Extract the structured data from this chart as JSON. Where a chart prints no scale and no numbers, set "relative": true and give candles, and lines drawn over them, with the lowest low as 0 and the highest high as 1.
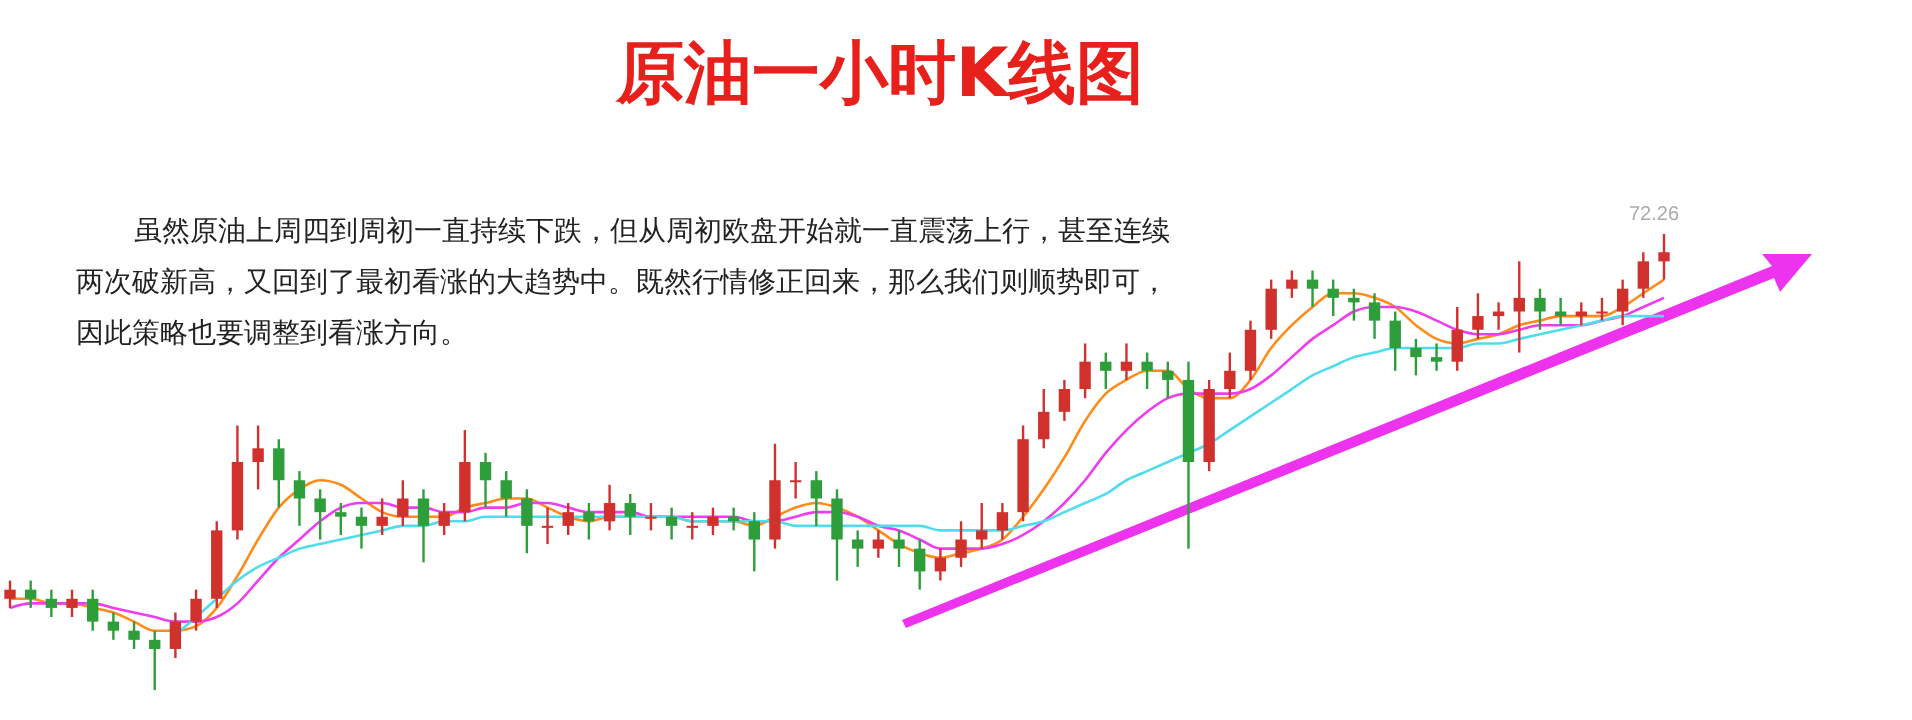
{
  "chart_data": {
    "type": "candlestick",
    "title": "原油一小时K线图",
    "relative": true,
    "annotations": [
      "虽然原油上周四到周初一直持续下跌，但从周初欧盘开始就一直震荡上行，甚至连续两次破新高，又回到了最初看涨的大趋势中。既然行情修正回来，那么我们则顺势即可，因此策略也要调整到看涨方向。",
      {
        "text": "72.26",
        "y": 1
      }
    ],
    "categories": [
      null,
      null,
      null,
      null,
      null,
      null,
      null,
      null,
      null,
      null,
      null,
      null,
      null,
      null,
      null,
      null,
      null,
      null,
      null,
      null,
      null,
      null,
      null,
      null,
      null,
      null,
      null,
      null,
      null,
      null,
      null,
      null,
      null,
      null,
      null,
      null,
      null,
      null,
      null,
      null,
      null,
      null,
      null,
      null,
      null,
      null,
      null,
      null,
      null,
      null,
      null,
      null,
      null,
      null,
      null,
      null,
      null,
      null,
      null,
      null,
      null,
      null,
      null,
      null,
      null,
      null,
      null,
      null,
      null,
      null,
      null,
      null,
      null,
      null,
      null,
      null,
      null,
      null,
      null,
      null,
      null
    ],
    "ohlc": [
      [
        0.2,
        0.24,
        0.18,
        0.22
      ],
      [
        0.22,
        0.24,
        0.18,
        0.2
      ],
      [
        0.2,
        0.22,
        0.16,
        0.18
      ],
      [
        0.18,
        0.22,
        0.16,
        0.2
      ],
      [
        0.2,
        0.22,
        0.13,
        0.15
      ],
      [
        0.15,
        0.17,
        0.11,
        0.13
      ],
      [
        0.13,
        0.15,
        0.09,
        0.11
      ],
      [
        0.11,
        0.13,
        0.0,
        0.09
      ],
      [
        0.09,
        0.17,
        0.07,
        0.15
      ],
      [
        0.15,
        0.22,
        0.13,
        0.2
      ],
      [
        0.2,
        0.37,
        0.18,
        0.35
      ],
      [
        0.35,
        0.58,
        0.33,
        0.5
      ],
      [
        0.5,
        0.58,
        0.44,
        0.53
      ],
      [
        0.53,
        0.55,
        0.4,
        0.46
      ],
      [
        0.46,
        0.48,
        0.36,
        0.42
      ],
      [
        0.42,
        0.44,
        0.33,
        0.39
      ],
      [
        0.39,
        0.41,
        0.34,
        0.38
      ],
      [
        0.38,
        0.4,
        0.31,
        0.36
      ],
      [
        0.36,
        0.42,
        0.34,
        0.38
      ],
      [
        0.38,
        0.46,
        0.36,
        0.42
      ],
      [
        0.42,
        0.44,
        0.28,
        0.36
      ],
      [
        0.36,
        0.41,
        0.34,
        0.39
      ],
      [
        0.39,
        0.57,
        0.37,
        0.5
      ],
      [
        0.5,
        0.52,
        0.4,
        0.46
      ],
      [
        0.46,
        0.48,
        0.38,
        0.42
      ],
      [
        0.42,
        0.44,
        0.3,
        0.36
      ],
      [
        0.36,
        0.4,
        0.32,
        0.36
      ],
      [
        0.36,
        0.41,
        0.34,
        0.39
      ],
      [
        0.39,
        0.41,
        0.33,
        0.37
      ],
      [
        0.37,
        0.45,
        0.35,
        0.41
      ],
      [
        0.41,
        0.43,
        0.34,
        0.38
      ],
      [
        0.38,
        0.41,
        0.35,
        0.38
      ],
      [
        0.38,
        0.4,
        0.33,
        0.36
      ],
      [
        0.36,
        0.39,
        0.33,
        0.36
      ],
      [
        0.36,
        0.4,
        0.34,
        0.38
      ],
      [
        0.38,
        0.4,
        0.35,
        0.37
      ],
      [
        0.37,
        0.39,
        0.26,
        0.33
      ],
      [
        0.33,
        0.54,
        0.31,
        0.46
      ],
      [
        0.46,
        0.5,
        0.42,
        0.46
      ],
      [
        0.46,
        0.48,
        0.36,
        0.42
      ],
      [
        0.42,
        0.44,
        0.24,
        0.33
      ],
      [
        0.33,
        0.35,
        0.27,
        0.31
      ],
      [
        0.31,
        0.35,
        0.29,
        0.33
      ],
      [
        0.33,
        0.35,
        0.27,
        0.31
      ],
      [
        0.31,
        0.33,
        0.22,
        0.26
      ],
      [
        0.26,
        0.31,
        0.24,
        0.29
      ],
      [
        0.29,
        0.37,
        0.27,
        0.33
      ],
      [
        0.33,
        0.41,
        0.31,
        0.35
      ],
      [
        0.35,
        0.41,
        0.33,
        0.39
      ],
      [
        0.39,
        0.58,
        0.37,
        0.55
      ],
      [
        0.55,
        0.66,
        0.53,
        0.61
      ],
      [
        0.61,
        0.68,
        0.59,
        0.66
      ],
      [
        0.66,
        0.76,
        0.64,
        0.72
      ],
      [
        0.72,
        0.74,
        0.66,
        0.7
      ],
      [
        0.7,
        0.76,
        0.68,
        0.72
      ],
      [
        0.72,
        0.74,
        0.66,
        0.7
      ],
      [
        0.7,
        0.72,
        0.64,
        0.68
      ],
      [
        0.68,
        0.72,
        0.31,
        0.5
      ],
      [
        0.5,
        0.68,
        0.48,
        0.66
      ],
      [
        0.66,
        0.74,
        0.64,
        0.7
      ],
      [
        0.7,
        0.81,
        0.68,
        0.79
      ],
      [
        0.79,
        0.9,
        0.77,
        0.88
      ],
      [
        0.88,
        0.92,
        0.86,
        0.9
      ],
      [
        0.9,
        0.92,
        0.84,
        0.88
      ],
      [
        0.88,
        0.9,
        0.82,
        0.86
      ],
      [
        0.86,
        0.88,
        0.81,
        0.85
      ],
      [
        0.85,
        0.87,
        0.77,
        0.81
      ],
      [
        0.81,
        0.83,
        0.7,
        0.75
      ],
      [
        0.75,
        0.77,
        0.69,
        0.73
      ],
      [
        0.73,
        0.76,
        0.7,
        0.72
      ],
      [
        0.72,
        0.84,
        0.7,
        0.79
      ],
      [
        0.79,
        0.87,
        0.77,
        0.82
      ],
      [
        0.82,
        0.85,
        0.79,
        0.83
      ],
      [
        0.83,
        0.94,
        0.74,
        0.86
      ],
      [
        0.86,
        0.88,
        0.79,
        0.83
      ],
      [
        0.83,
        0.86,
        0.8,
        0.82
      ],
      [
        0.82,
        0.85,
        0.8,
        0.83
      ],
      [
        0.83,
        0.86,
        0.81,
        0.83
      ],
      [
        0.83,
        0.9,
        0.8,
        0.88
      ],
      [
        0.88,
        0.96,
        0.86,
        0.94
      ],
      [
        0.94,
        1.0,
        0.9,
        0.96
      ]
    ],
    "colors": [
      "#d0312d",
      "#2e9e3a",
      "#2e9e3a",
      "#d0312d",
      "#2e9e3a",
      "#2e9e3a",
      "#2e9e3a",
      "#2e9e3a",
      "#d0312d",
      "#d0312d",
      "#d0312d",
      "#d0312d",
      "#d0312d",
      "#2e9e3a",
      "#2e9e3a",
      "#2e9e3a",
      "#2e9e3a",
      "#2e9e3a",
      "#d0312d",
      "#d0312d",
      "#2e9e3a",
      "#d0312d",
      "#d0312d",
      "#2e9e3a",
      "#2e9e3a",
      "#2e9e3a",
      "#d0312d",
      "#d0312d",
      "#2e9e3a",
      "#d0312d",
      "#2e9e3a",
      "#d0312d",
      "#2e9e3a",
      "#d0312d",
      "#d0312d",
      "#2e9e3a",
      "#2e9e3a",
      "#d0312d",
      "#d0312d",
      "#2e9e3a",
      "#2e9e3a",
      "#2e9e3a",
      "#d0312d",
      "#2e9e3a",
      "#2e9e3a",
      "#d0312d",
      "#d0312d",
      "#d0312d",
      "#d0312d",
      "#d0312d",
      "#d0312d",
      "#d0312d",
      "#d0312d",
      "#2e9e3a",
      "#d0312d",
      "#2e9e3a",
      "#2e9e3a",
      "#2e9e3a",
      "#d0312d",
      "#d0312d",
      "#d0312d",
      "#d0312d",
      "#d0312d",
      "#2e9e3a",
      "#2e9e3a",
      "#2e9e3a",
      "#2e9e3a",
      "#2e9e3a",
      "#2e9e3a",
      "#2e9e3a",
      "#d0312d",
      "#d0312d",
      "#d0312d",
      "#d0312d",
      "#2e9e3a",
      "#2e9e3a",
      "#d0312d",
      "#d0312d",
      "#d0312d",
      "#d0312d",
      "#d0312d"
    ],
    "series": [
      {
        "type": "line",
        "color": "#ff8c1a",
        "values": [
          0.2,
          0.2,
          0.19,
          0.19,
          0.18,
          0.17,
          0.15,
          0.13,
          0.13,
          0.14,
          0.18,
          0.25,
          0.33,
          0.4,
          0.44,
          0.46,
          0.45,
          0.42,
          0.39,
          0.38,
          0.38,
          0.38,
          0.4,
          0.41,
          0.42,
          0.42,
          0.4,
          0.38,
          0.37,
          0.38,
          0.38,
          0.38,
          0.38,
          0.37,
          0.37,
          0.37,
          0.36,
          0.38,
          0.4,
          0.41,
          0.4,
          0.38,
          0.35,
          0.32,
          0.3,
          0.29,
          0.3,
          0.31,
          0.33,
          0.38,
          0.44,
          0.51,
          0.59,
          0.65,
          0.68,
          0.7,
          0.7,
          0.66,
          0.64,
          0.64,
          0.68,
          0.75,
          0.8,
          0.84,
          0.87,
          0.87,
          0.86,
          0.84,
          0.8,
          0.77,
          0.76,
          0.77,
          0.78,
          0.8,
          0.81,
          0.82,
          0.82,
          0.82,
          0.84,
          0.87,
          0.9
        ]
      },
      {
        "type": "line",
        "color": "#f03cf0",
        "values": [
          0.18,
          0.19,
          0.19,
          0.19,
          0.19,
          0.18,
          0.17,
          0.16,
          0.15,
          0.15,
          0.16,
          0.19,
          0.24,
          0.29,
          0.33,
          0.37,
          0.4,
          0.41,
          0.41,
          0.4,
          0.4,
          0.39,
          0.39,
          0.4,
          0.4,
          0.41,
          0.41,
          0.4,
          0.39,
          0.39,
          0.39,
          0.38,
          0.38,
          0.38,
          0.38,
          0.38,
          0.37,
          0.37,
          0.38,
          0.39,
          0.39,
          0.38,
          0.36,
          0.35,
          0.33,
          0.31,
          0.31,
          0.31,
          0.32,
          0.34,
          0.37,
          0.41,
          0.46,
          0.52,
          0.57,
          0.61,
          0.64,
          0.65,
          0.65,
          0.65,
          0.66,
          0.69,
          0.73,
          0.77,
          0.8,
          0.83,
          0.84,
          0.84,
          0.83,
          0.81,
          0.79,
          0.78,
          0.78,
          0.79,
          0.8,
          0.8,
          0.8,
          0.81,
          0.82,
          0.84,
          0.86
        ]
      },
      {
        "type": "line",
        "color": "#4fdcec",
        "values": [
          null,
          null,
          null,
          null,
          null,
          null,
          null,
          null,
          0.12,
          0.16,
          0.2,
          0.24,
          0.27,
          0.29,
          0.31,
          0.32,
          0.33,
          0.34,
          0.35,
          0.36,
          0.36,
          0.37,
          0.37,
          0.38,
          0.38,
          0.38,
          0.38,
          0.38,
          0.38,
          0.38,
          0.38,
          0.38,
          0.38,
          0.37,
          0.37,
          0.37,
          0.37,
          0.37,
          0.36,
          0.36,
          0.36,
          0.36,
          0.36,
          0.36,
          0.36,
          0.35,
          0.35,
          0.35,
          0.35,
          0.36,
          0.37,
          0.39,
          0.41,
          0.43,
          0.46,
          0.48,
          0.5,
          0.52,
          0.54,
          0.57,
          0.6,
          0.63,
          0.66,
          0.69,
          0.71,
          0.73,
          0.74,
          0.75,
          0.75,
          0.75,
          0.75,
          0.76,
          0.76,
          0.77,
          0.78,
          0.79,
          0.8,
          0.81,
          0.82,
          0.82,
          0.82
        ]
      }
    ]
  }
}
